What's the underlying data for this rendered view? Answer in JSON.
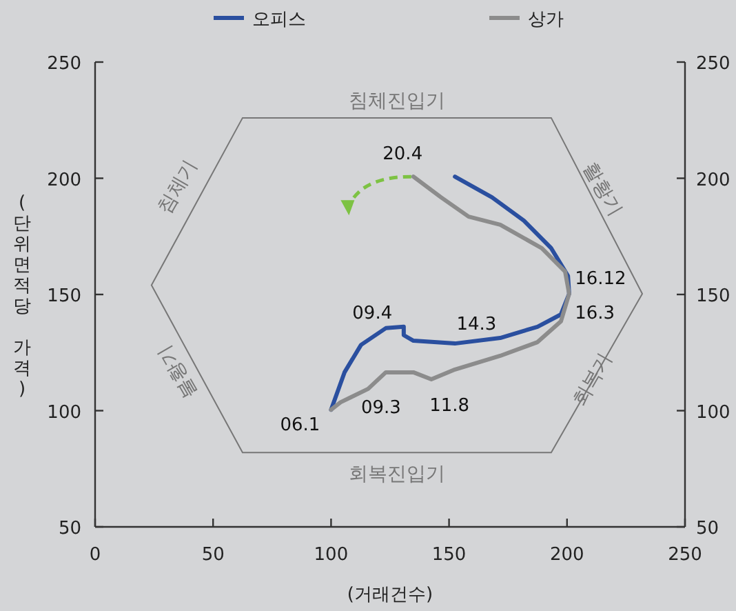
{
  "chart_data": {
    "type": "line",
    "xlabel": "(거래건수)",
    "ylabel": "(단위면적당 가격)",
    "xlim": [
      0,
      250
    ],
    "xticks": [
      0,
      50,
      100,
      150,
      200,
      250
    ],
    "ylim": [
      50,
      250
    ],
    "yticks": [
      50,
      100,
      150,
      200,
      250
    ],
    "y2lim": [
      50,
      250
    ],
    "y2ticks": [
      50,
      100,
      150,
      200,
      250
    ],
    "legend": "top",
    "grid": false,
    "marker": "none",
    "line_style": "solid",
    "series": [
      {
        "name": "오피스",
        "color": "#2a4f9f",
        "x": [
          100,
          105.7,
          112.7,
          123.2,
          130.8,
          130.8,
          134.9,
          152.5,
          171.7,
          187.5,
          197.4,
          200.9,
          200.4,
          193.3,
          181.7,
          168.2,
          152.5
        ],
        "values": [
          100.4,
          116.5,
          128.3,
          135.5,
          136.1,
          132.5,
          130.1,
          128.9,
          131.3,
          136.1,
          141.4,
          150.3,
          158,
          169.9,
          181.8,
          191.8,
          200.7
        ]
      },
      {
        "name": "상가",
        "color": "#8c8c8c",
        "x": [
          100,
          104,
          115.7,
          123.2,
          134.9,
          142.5,
          152.5,
          171.7,
          187.5,
          197.4,
          200.9,
          199.2,
          189.3,
          171.7,
          158.3,
          146.6,
          134.9
        ],
        "values": [
          100.4,
          103.6,
          109.4,
          116.5,
          116.5,
          113.5,
          117.7,
          123.6,
          129.5,
          138.4,
          150.3,
          159.8,
          169.9,
          180,
          183.5,
          191.8,
          200.7
        ]
      }
    ],
    "annotations": [
      {
        "text": "06.1",
        "x": 100,
        "y": 100
      },
      {
        "text": "09.3",
        "x": 120,
        "y": 112
      },
      {
        "text": "09.4",
        "x": 128,
        "y": 135
      },
      {
        "text": "14.3",
        "x": 152,
        "y": 129
      },
      {
        "text": "11.8",
        "x": 142,
        "y": 113
      },
      {
        "text": "16.12",
        "x": 201,
        "y": 152
      },
      {
        "text": "16.3",
        "x": 201,
        "y": 148
      },
      {
        "text": "20.4",
        "x": 135,
        "y": 200
      },
      "침체진입기",
      "활황기",
      "회복기",
      "회복진입기",
      "불황기",
      "침체기"
    ]
  }
}
